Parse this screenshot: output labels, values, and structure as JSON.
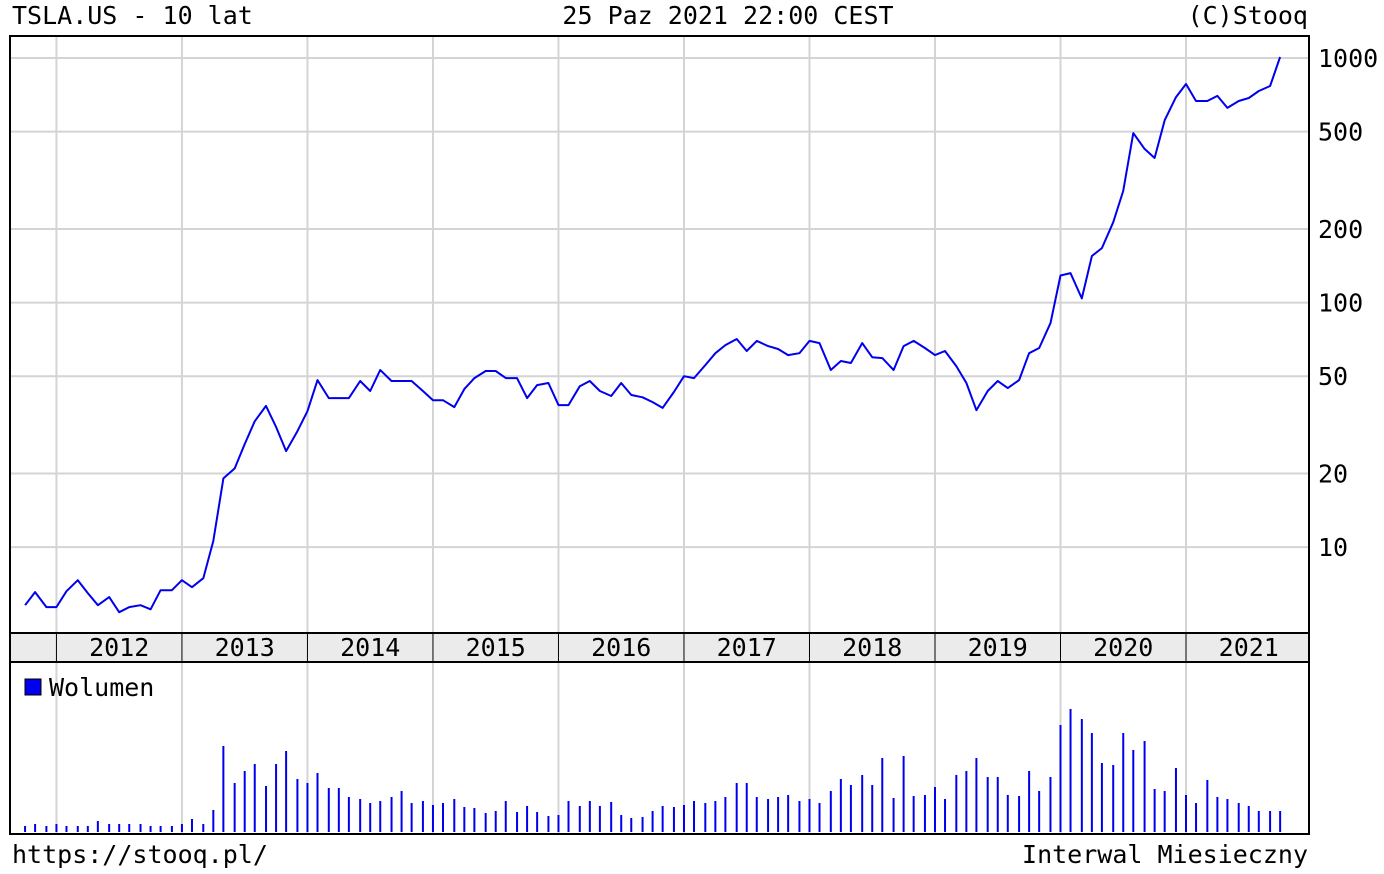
{
  "header": {
    "title": "TSLA.US - 10 lat",
    "date": "25 Paz 2021 22:00 CEST",
    "copyright": "(C)Stooq"
  },
  "footer": {
    "url": "https://stooq.pl/",
    "interval": "Interwal Miesieczny"
  },
  "chart_data": [
    {
      "type": "line",
      "log_scale": true,
      "grid": true,
      "color": "#0000ee",
      "x": [
        2011.75,
        2011.83,
        2011.92,
        2012,
        2012.08,
        2012.17,
        2012.25,
        2012.33,
        2012.42,
        2012.5,
        2012.58,
        2012.67,
        2012.75,
        2012.83,
        2012.92,
        2013,
        2013.08,
        2013.17,
        2013.25,
        2013.33,
        2013.42,
        2013.5,
        2013.58,
        2013.67,
        2013.75,
        2013.83,
        2013.92,
        2014,
        2014.08,
        2014.17,
        2014.25,
        2014.33,
        2014.42,
        2014.5,
        2014.58,
        2014.67,
        2014.75,
        2014.83,
        2014.92,
        2015,
        2015.08,
        2015.17,
        2015.25,
        2015.33,
        2015.42,
        2015.5,
        2015.58,
        2015.67,
        2015.75,
        2015.83,
        2015.92,
        2016,
        2016.08,
        2016.17,
        2016.25,
        2016.33,
        2016.42,
        2016.5,
        2016.58,
        2016.67,
        2016.75,
        2016.83,
        2016.92,
        2017,
        2017.08,
        2017.17,
        2017.25,
        2017.33,
        2017.42,
        2017.5,
        2017.58,
        2017.67,
        2017.75,
        2017.83,
        2017.92,
        2018,
        2018.08,
        2018.17,
        2018.25,
        2018.33,
        2018.42,
        2018.5,
        2018.58,
        2018.67,
        2018.75,
        2018.83,
        2018.92,
        2019,
        2019.08,
        2019.17,
        2019.25,
        2019.33,
        2019.42,
        2019.5,
        2019.58,
        2019.67,
        2019.75,
        2019.83,
        2019.92,
        2020,
        2020.08,
        2020.17,
        2020.25,
        2020.33,
        2020.42,
        2020.5,
        2020.58,
        2020.67,
        2020.75,
        2020.83,
        2020.92,
        2021,
        2021.08,
        2021.17,
        2021.25,
        2021.33,
        2021.42,
        2021.5,
        2021.58,
        2021.67,
        2021.75
      ],
      "values": [
        5.79,
        6.55,
        5.69,
        5.69,
        6.61,
        7.33,
        6.49,
        5.79,
        6.25,
        5.42,
        5.69,
        5.79,
        5.57,
        6.67,
        6.67,
        7.33,
        6.86,
        7.47,
        10.6,
        19.1,
        21.0,
        26.4,
        32.7,
        37.8,
        31.0,
        24.7,
        29.8,
        36.0,
        48.2,
        40.7,
        40.7,
        40.7,
        47.8,
        43.5,
        53.0,
        47.8,
        47.8,
        47.8,
        43.5,
        39.9,
        39.9,
        37.4,
        44.3,
        49.1,
        52.5,
        52.5,
        49.1,
        49.1,
        40.7,
        46.0,
        46.9,
        38.1,
        38.1,
        45.5,
        47.8,
        43.5,
        41.5,
        46.9,
        41.9,
        41.0,
        39.2,
        37.1,
        43.1,
        50.0,
        49.1,
        55.5,
        62.1,
        67.0,
        71.0,
        63.4,
        69.7,
        66.4,
        64.6,
        61.0,
        62.1,
        69.7,
        68.3,
        53.0,
        57.7,
        56.6,
        68.3,
        59.8,
        59.3,
        53.0,
        66.4,
        69.7,
        65.2,
        61.0,
        63.4,
        55.0,
        46.9,
        36.3,
        43.5,
        47.8,
        44.7,
        48.2,
        62.1,
        65.2,
        82.4,
        129,
        132,
        104,
        155,
        167,
        213,
        286,
        493,
        425,
        390,
        557,
        692,
        783,
        667,
        667,
        700,
        625,
        667,
        686,
        733,
        768,
        1009
      ],
      "xlim": [
        2011.63,
        2021.98
      ],
      "xticks": [
        2012,
        2013,
        2014,
        2015,
        2016,
        2017,
        2018,
        2019,
        2020,
        2021
      ],
      "ylim": [
        4.5,
        1230
      ],
      "yticks": [
        10,
        20,
        50,
        100,
        200,
        500,
        1000
      ]
    },
    {
      "type": "bar",
      "xlim": [
        2011.63,
        2021.98
      ],
      "ylim": [
        0,
        160
      ],
      "series": [
        {
          "name": "Wolumen",
          "color": "#0000ee",
          "values": [
            6,
            8,
            6,
            8,
            6,
            6,
            6,
            11,
            8,
            8,
            8,
            8,
            6,
            6,
            6,
            8,
            13,
            8,
            22,
            86,
            49,
            61,
            68,
            46,
            68,
            81,
            53,
            49,
            59,
            44,
            44,
            35,
            33,
            29,
            31,
            35,
            41,
            29,
            31,
            27,
            29,
            33,
            25,
            24,
            19,
            21,
            31,
            20,
            26,
            20,
            16,
            17,
            31,
            26,
            31,
            26,
            30,
            17,
            14,
            15,
            21,
            26,
            25,
            27,
            31,
            29,
            31,
            35,
            49,
            49,
            35,
            33,
            35,
            37,
            31,
            33,
            29,
            41,
            53,
            47,
            57,
            47,
            74,
            34,
            76,
            36,
            37,
            45,
            33,
            57,
            61,
            74,
            55,
            55,
            37,
            36,
            61,
            41,
            55,
            107,
            123,
            113,
            99,
            69,
            67,
            99,
            82,
            91,
            43,
            41,
            64,
            37,
            29,
            52,
            35,
            33,
            29,
            26,
            21,
            21,
            21
          ]
        }
      ]
    }
  ]
}
